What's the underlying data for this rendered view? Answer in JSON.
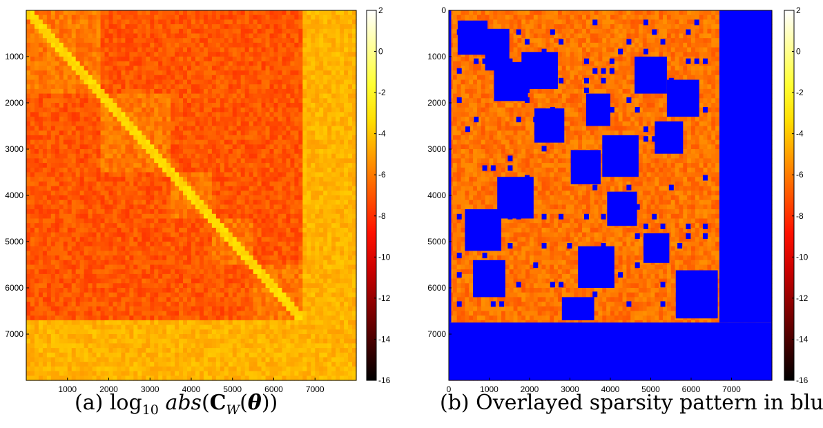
{
  "chart_data": [
    {
      "type": "heatmap",
      "caption_label": "(a)",
      "matrix_size": 8000,
      "x_ticks": [
        "1000",
        "2000",
        "3000",
        "4000",
        "5000",
        "6000",
        "7000"
      ],
      "y_ticks": [
        "1000",
        "2000",
        "3000",
        "4000",
        "5000",
        "6000",
        "7000"
      ],
      "x_tick_values": [
        1000,
        2000,
        3000,
        4000,
        5000,
        6000,
        7000
      ],
      "y_tick_values": [
        1000,
        2000,
        3000,
        4000,
        5000,
        6000,
        7000
      ],
      "colorbar": {
        "min": -16,
        "max": 2,
        "ticks": [
          "2",
          "0",
          "-2",
          "-4",
          "-6",
          "-8",
          "-10",
          "-12",
          "-14",
          "-16"
        ],
        "tick_values": [
          2,
          0,
          -2,
          -4,
          -6,
          -8,
          -10,
          -12,
          -14,
          -16
        ],
        "colormap": "hot"
      },
      "block_boundaries": [
        0,
        1800,
        3500,
        4500,
        5500,
        6750,
        8000
      ],
      "background_value": -7,
      "diagonal_value": -3.5,
      "lighter_band_start": 6750,
      "lighter_band_value": -4.5
    },
    {
      "type": "heatmap",
      "caption": "(b) Overlayed sparsity pattern in blue",
      "matrix_size": 8000,
      "x_ticks": [
        "0",
        "1000",
        "2000",
        "3000",
        "4000",
        "5000",
        "6000",
        "7000"
      ],
      "y_ticks": [
        "0",
        "1000",
        "2000",
        "3000",
        "4000",
        "5000",
        "6000",
        "7000"
      ],
      "x_tick_values": [
        0,
        1000,
        2000,
        3000,
        4000,
        5000,
        6000,
        7000
      ],
      "y_tick_values": [
        0,
        1000,
        2000,
        3000,
        4000,
        5000,
        6000,
        7000
      ],
      "colorbar": {
        "min": -16,
        "max": 2,
        "ticks": [
          "2",
          "0",
          "-2",
          "-4",
          "-6",
          "-8",
          "-10",
          "-12",
          "-14",
          "-16"
        ],
        "tick_values": [
          2,
          0,
          -2,
          -4,
          -6,
          -8,
          -10,
          -12,
          -14,
          -16
        ],
        "colormap": "hot"
      },
      "sparsity_color": "#0000ff",
      "dense_region": {
        "rows_upper_part": [
          0,
          6750
        ],
        "cols_upper_part": [
          0,
          6700
        ],
        "rows_lower_part": [
          6750,
          8000
        ]
      },
      "diagonal_blocks": [
        [
          100,
          1000
        ],
        [
          1000,
          2000
        ],
        [
          2000,
          2900
        ],
        [
          2900,
          3800
        ],
        [
          3800,
          4700
        ],
        [
          4700,
          5500
        ],
        [
          5500,
          6700
        ]
      ],
      "offdiag_blocks": [
        [
          400,
          1300,
          900,
          1500
        ],
        [
          2700,
          3600,
          3800,
          4700
        ],
        [
          1000,
          1800,
          4600,
          5400
        ],
        [
          3600,
          4500,
          1200,
          2100
        ],
        [
          5100,
          6000,
          3200,
          4100
        ],
        [
          1500,
          2300,
          5400,
          6200
        ],
        [
          4300,
          5200,
          400,
          1300
        ],
        [
          6200,
          6700,
          2800,
          3600
        ],
        [
          900,
          1700,
          1800,
          2700
        ],
        [
          2400,
          3100,
          5100,
          5800
        ],
        [
          1800,
          2500,
          3400,
          4000
        ],
        [
          5400,
          6200,
          600,
          1400
        ]
      ]
    }
  ],
  "colors": {
    "blue": "#0000ff",
    "background": "#ffffff"
  }
}
